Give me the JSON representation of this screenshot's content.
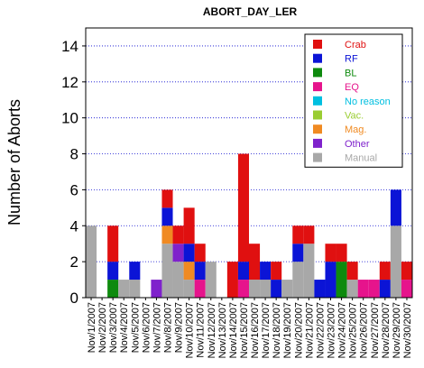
{
  "chart_data": {
    "type": "bar",
    "stacked": true,
    "title": "ABORT_DAY_LER",
    "xlabel": "",
    "ylabel": "Number of Aborts",
    "ylim": [
      0,
      15
    ],
    "yticks": [
      0,
      2,
      4,
      6,
      8,
      10,
      12,
      14
    ],
    "grid": true,
    "legend_position": "top-right",
    "categories": [
      "Nov/1/2007",
      "Nov/2/2007",
      "Nov/3/2007",
      "Nov/4/2007",
      "Nov/5/2007",
      "Nov/6/2007",
      "Nov/7/2007",
      "Nov/8/2007",
      "Nov/9/2007",
      "Nov/10/2007",
      "Nov/11/2007",
      "Nov/12/2007",
      "Nov/13/2007",
      "Nov/14/2007",
      "Nov/15/2007",
      "Nov/16/2007",
      "Nov/17/2007",
      "Nov/18/2007",
      "Nov/19/2007",
      "Nov/20/2007",
      "Nov/21/2007",
      "Nov/22/2007",
      "Nov/23/2007",
      "Nov/24/2007",
      "Nov/25/2007",
      "Nov/26/2007",
      "Nov/27/2007",
      "Nov/28/2007",
      "Nov/29/2007",
      "Nov/30/2007"
    ],
    "series": [
      {
        "name": "Manual",
        "color": "#a8a8a8",
        "values": [
          4,
          0,
          0,
          1,
          1,
          0,
          0,
          3,
          2,
          1,
          0,
          2,
          0,
          0,
          0,
          1,
          1,
          0,
          1,
          2,
          3,
          0,
          0,
          0,
          1,
          0,
          0,
          0,
          4,
          0
        ]
      },
      {
        "name": "Other",
        "color": "#7f22cc",
        "values": [
          0,
          0,
          0,
          0,
          0,
          0,
          1,
          0,
          1,
          0,
          0,
          0,
          0,
          0,
          0,
          0,
          0,
          0,
          0,
          0,
          0,
          0,
          0,
          0,
          0,
          0,
          0,
          0,
          0,
          0
        ]
      },
      {
        "name": "Mag.",
        "color": "#f08a22",
        "values": [
          0,
          0,
          0,
          0,
          0,
          0,
          0,
          1,
          0,
          1,
          0,
          0,
          0,
          0,
          0,
          0,
          0,
          0,
          0,
          0,
          0,
          0,
          0,
          0,
          0,
          0,
          0,
          0,
          0,
          0
        ]
      },
      {
        "name": "Vac.",
        "color": "#9acd32",
        "values": [
          0,
          0,
          0,
          0,
          0,
          0,
          0,
          0,
          0,
          0,
          0,
          0,
          0,
          0,
          0,
          0,
          0,
          0,
          0,
          0,
          0,
          0,
          0,
          0,
          0,
          0,
          0,
          0,
          0,
          0
        ]
      },
      {
        "name": "No reason",
        "color": "#00bfe0",
        "values": [
          0,
          0,
          0,
          0,
          0,
          0,
          0,
          0,
          0,
          0,
          0,
          0,
          0,
          0,
          0,
          0,
          0,
          0,
          0,
          0,
          0,
          0,
          0,
          0,
          0,
          0,
          0,
          0,
          0,
          0
        ]
      },
      {
        "name": "EQ",
        "color": "#e6148c",
        "values": [
          0,
          0,
          0,
          0,
          0,
          0,
          0,
          0,
          0,
          0,
          1,
          0,
          0,
          0,
          1,
          0,
          0,
          0,
          0,
          0,
          0,
          0,
          0,
          0,
          0,
          1,
          1,
          0,
          0,
          1
        ]
      },
      {
        "name": "BL",
        "color": "#0e8a0e",
        "values": [
          0,
          0,
          1,
          0,
          0,
          0,
          0,
          0,
          0,
          0,
          0,
          0,
          0,
          0,
          0,
          0,
          0,
          0,
          0,
          0,
          0,
          0,
          0,
          2,
          0,
          0,
          0,
          0,
          0,
          0
        ]
      },
      {
        "name": "RF",
        "color": "#0b14d6",
        "values": [
          0,
          0,
          1,
          0,
          1,
          0,
          0,
          1,
          0,
          1,
          1,
          0,
          0,
          0,
          1,
          0,
          1,
          1,
          0,
          1,
          0,
          1,
          2,
          0,
          0,
          0,
          0,
          1,
          2,
          0
        ]
      },
      {
        "name": "Crab",
        "color": "#e01010",
        "values": [
          0,
          0,
          2,
          0,
          0,
          0,
          0,
          1,
          1,
          2,
          1,
          0,
          0,
          2,
          6,
          2,
          0,
          1,
          0,
          1,
          1,
          0,
          1,
          1,
          1,
          0,
          0,
          1,
          0,
          1
        ]
      }
    ],
    "legend_order": [
      "Crab",
      "RF",
      "BL",
      "EQ",
      "No reason",
      "Vac.",
      "Mag.",
      "Other",
      "Manual"
    ]
  }
}
